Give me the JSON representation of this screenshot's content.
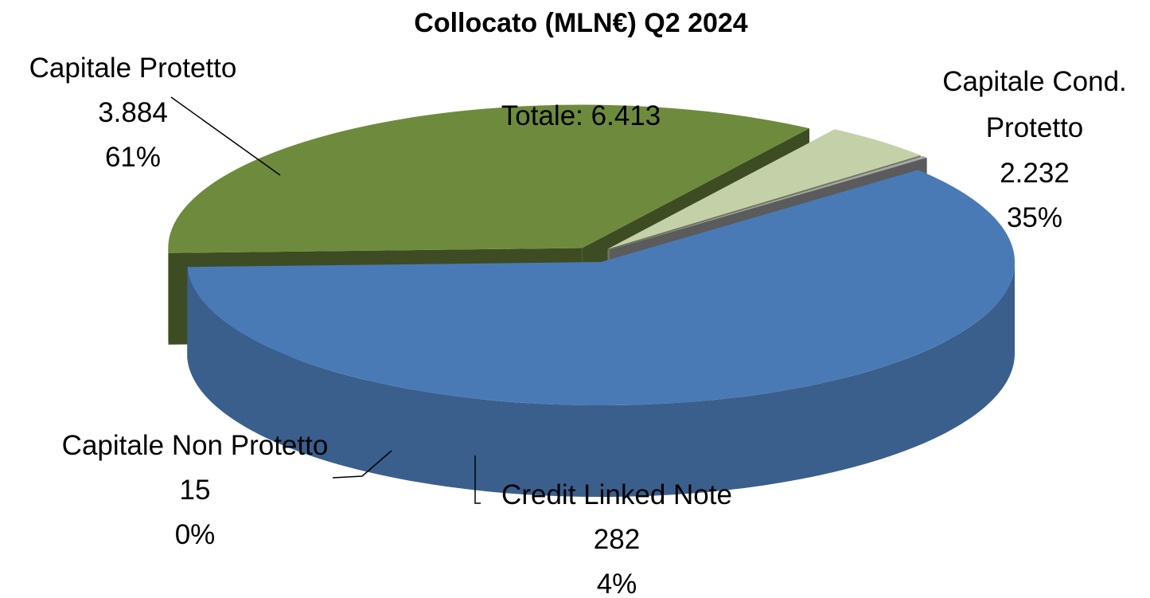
{
  "chart_data": {
    "type": "pie",
    "title": "Collocato  (MLN€) Q2 2024",
    "annotation": "Totale: 6.413",
    "categories": [
      "Capitale Protetto",
      "Capitale Cond. Protetto",
      "Credit Linked Note",
      "Capitale Non Protetto"
    ],
    "values": [
      3884,
      2232,
      282,
      15
    ],
    "value_labels": [
      "3.884",
      "2.232",
      "282",
      "15"
    ],
    "percent_labels": [
      "61%",
      "35%",
      "4%",
      "0%"
    ],
    "colors": [
      "#4a7ab5",
      "#6e8b3d",
      "#c4d1a8",
      "#a6a6a6"
    ]
  }
}
